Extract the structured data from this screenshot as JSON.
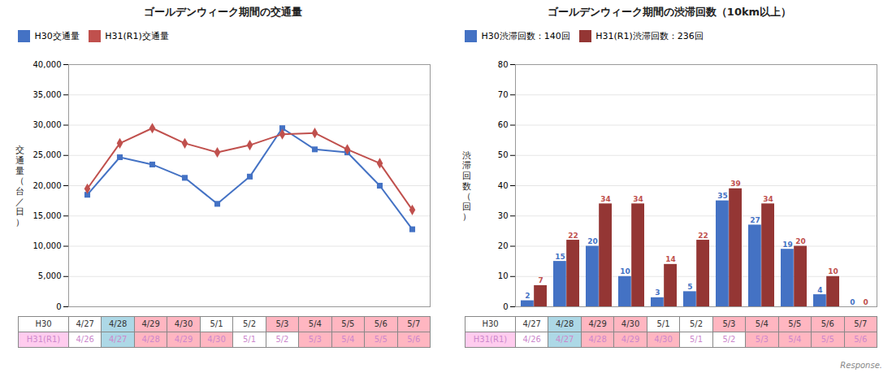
{
  "chart_data": [
    {
      "type": "line",
      "title": "ゴールデンウィーク期間の交通量",
      "y_label": "交\n通\n量\n（\n台\n／\n日\n）",
      "series": [
        {
          "name": "H30交通量",
          "color": "#4472C4",
          "marker": "square",
          "values": [
            18500,
            24700,
            23500,
            21300,
            17000,
            21500,
            29500,
            26000,
            25500,
            20000,
            12800
          ]
        },
        {
          "name": "H31(R1)交通量",
          "color": "#C0504D",
          "marker": "diamond",
          "values": [
            19500,
            27000,
            29500,
            27000,
            25500,
            26700,
            28500,
            28700,
            26000,
            23700,
            16000
          ]
        }
      ],
      "ylim": [
        0,
        40000
      ],
      "yticks": [
        0,
        {
          "value": 5000,
          "label": "5,000"
        },
        {
          "value": 10000,
          "label": "10,000"
        },
        {
          "value": 15000,
          "label": "15,000"
        },
        {
          "value": 20000,
          "label": "20,000"
        },
        {
          "value": 25000,
          "label": "25,000"
        },
        {
          "value": 30000,
          "label": "30,000"
        },
        {
          "value": 35000,
          "label": "35,000"
        },
        {
          "value": 40000,
          "label": "40,000"
        }
      ],
      "grid": true,
      "legend": "top",
      "tick_labels": "y",
      "table": {
        "rows": [
          {
            "label": "H30",
            "label_background": "#FFFFFF",
            "color": "#333333",
            "categories": [
              "4/27",
              "4/28",
              "4/29",
              "4/30",
              "5/1",
              "5/2",
              "5/3",
              "5/4",
              "5/5",
              "5/6",
              "5/7"
            ],
            "colors": [
              "#FFFFFF",
              "#ADD8E6",
              "#FFB6C1",
              "#FFB6C1",
              "#FFFFFF",
              "#FFFFFF",
              "#FFB6C1",
              "#FFB6C1",
              "#FFB6C1",
              "#FFB6C1",
              "#FFB6C1"
            ]
          },
          {
            "label": "H31(R1)",
            "label_background": "#FFCCEE",
            "color": "#CC88CC",
            "categories": [
              "4/26",
              "4/27",
              "4/28",
              "4/29",
              "4/30",
              "5/1",
              "5/2",
              "5/3",
              "5/4",
              "5/5",
              "5/6"
            ],
            "colors": [
              "#FFFFFF",
              "#ADD8E6",
              "#FFB6C1",
              "#FFB6C1",
              "#FFB6C1",
              "#FFFFFF",
              "#FFFFFF",
              "#FFB6C1",
              "#FFB6C1",
              "#FFB6C1",
              "#FFB6C1"
            ]
          }
        ]
      }
    },
    {
      "type": "bar",
      "title": "ゴールデンウィーク期間の渋滞回数（10km以上）",
      "y_label": "渋\n滞\n回\n数\n（\n回\n）",
      "series": [
        {
          "name": "H30渋滞回数：140回",
          "color": "#4472C4",
          "label_color": "#4472C4",
          "values": [
            2,
            15,
            20,
            10,
            3,
            5,
            35,
            27,
            19,
            4,
            0
          ]
        },
        {
          "name": "H31(R1)渋滞回数：236回",
          "color": "#943634",
          "label_color": "#C0504D",
          "values": [
            7,
            22,
            34,
            34,
            14,
            22,
            39,
            34,
            20,
            10,
            0
          ]
        }
      ],
      "ylim": [
        0,
        80
      ],
      "yticks": [
        0,
        10,
        20,
        30,
        40,
        50,
        60,
        70,
        80
      ],
      "grid": true,
      "legend": "top",
      "tick_labels": "y",
      "data_labels": true,
      "annotation": "Response.",
      "table": {
        "rows": [
          {
            "label": "H30",
            "label_background": "#FFFFFF",
            "color": "#333333",
            "categories": [
              "4/27",
              "4/28",
              "4/29",
              "4/30",
              "5/1",
              "5/2",
              "5/3",
              "5/4",
              "5/5",
              "5/6",
              "5/7"
            ],
            "colors": [
              "#FFFFFF",
              "#ADD8E6",
              "#FFB6C1",
              "#FFB6C1",
              "#FFFFFF",
              "#FFFFFF",
              "#FFB6C1",
              "#FFB6C1",
              "#FFB6C1",
              "#FFB6C1",
              "#FFB6C1"
            ]
          },
          {
            "label": "H31(R1)",
            "label_background": "#FFCCEE",
            "color": "#CC88CC",
            "categories": [
              "4/26",
              "4/27",
              "4/28",
              "4/29",
              "4/30",
              "5/1",
              "5/2",
              "5/3",
              "5/4",
              "5/5",
              "5/6"
            ],
            "colors": [
              "#FFFFFF",
              "#ADD8E6",
              "#FFB6C1",
              "#FFB6C1",
              "#FFB6C1",
              "#FFFFFF",
              "#FFFFFF",
              "#FFB6C1",
              "#FFB6C1",
              "#FFB6C1",
              "#FFB6C1"
            ]
          }
        ]
      }
    }
  ]
}
